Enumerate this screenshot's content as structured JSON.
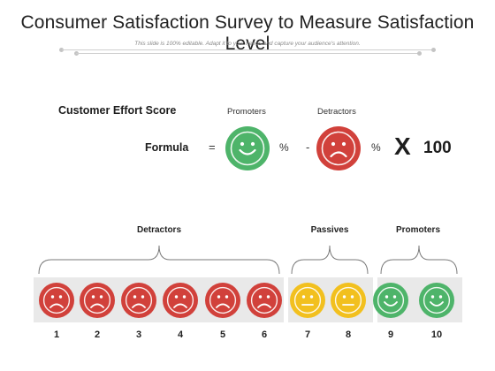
{
  "header": {
    "title": "Consumer Satisfaction Survey to Measure Satisfaction Level",
    "subtitle": "This slide is 100% editable. Adapt it to your needs and capture your audience's attention."
  },
  "formula_section": {
    "heading": "Customer Effort Score",
    "label": "Formula",
    "equals": "=",
    "promoters_label": "Promoters",
    "detractors_label": "Detractors",
    "percent": "%",
    "minus": "-",
    "times": "X",
    "multiplier": "100"
  },
  "scale": {
    "groups": [
      {
        "name": "Detractors",
        "from": 1,
        "to": 6,
        "mood": "sad",
        "color": "#d1413b"
      },
      {
        "name": "Passives",
        "from": 7,
        "to": 8,
        "mood": "neutral",
        "color": "#f2c01e"
      },
      {
        "name": "Promoters",
        "from": 9,
        "to": 10,
        "mood": "happy",
        "color": "#4eb46a"
      }
    ],
    "numbers": [
      "1",
      "2",
      "3",
      "4",
      "5",
      "6",
      "7",
      "8",
      "9",
      "10"
    ]
  },
  "colors": {
    "happy": "#4eb46a",
    "sad": "#d1413b",
    "neutral": "#f2c01e"
  },
  "icons": {
    "happy": "smiling-face-icon",
    "sad": "frowning-face-icon",
    "neutral": "neutral-face-icon"
  }
}
